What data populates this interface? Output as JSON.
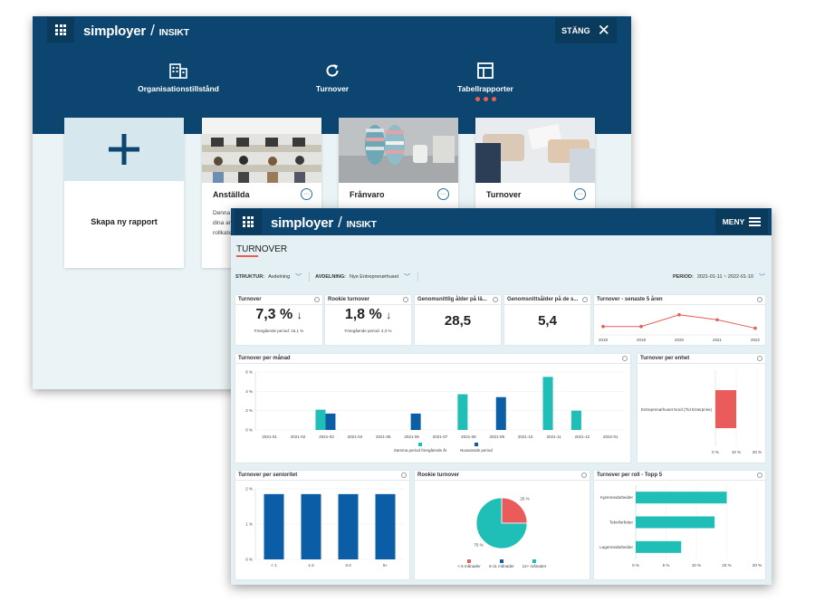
{
  "back": {
    "logo": {
      "brand": "simployer",
      "sub": "INSIKT"
    },
    "close_label": "STÄNG",
    "nav": [
      {
        "label": "Organisationstillstånd",
        "icon": "building-icon"
      },
      {
        "label": "Turnover",
        "icon": "refresh-icon"
      },
      {
        "label": "Tabellrapporter",
        "icon": "table-icon"
      }
    ],
    "create_label": "Skapa ny rapport",
    "cards": [
      {
        "title": "Anställda",
        "desc_line1": "Denna",
        "desc_line2": "dina an",
        "desc_line3": "rollkate"
      },
      {
        "title": "Frånvaro"
      },
      {
        "title": "Turnover"
      }
    ],
    "colors": {
      "header": "#0c4670",
      "accent": "#e8604a"
    }
  },
  "front": {
    "logo": {
      "brand": "simployer",
      "sub": "INSIKT"
    },
    "menu_label": "MENY",
    "page_title": "TURNOVER",
    "filters": {
      "struktur_label": "STRUKTUR:",
      "struktur_value": "Avdelning",
      "avdelning_label": "AVDELNING:",
      "avdelning_value": "Nye Entreprenørhuset",
      "period_label": "PERIOD:",
      "period_value": "2021-01-11 ~ 2022-01-10"
    },
    "kpis": [
      {
        "title": "Turnover",
        "value": "7,3 %",
        "arrow": "↓",
        "sub": "Föregående period: 15,1 %"
      },
      {
        "title": "Rookie turnover",
        "value": "1,8 %",
        "arrow": "↓",
        "sub": "Föregående period: 4,3 %"
      },
      {
        "title": "Genomsnittlig ålder på lä...",
        "value": "28,5"
      },
      {
        "title": "Genomsnittsålder på de s...",
        "value": "5,4"
      }
    ],
    "panels": {
      "five_years": "Turnover - senaste 5 åren",
      "per_month": "Turnover per månad",
      "per_unit": "Turnover per enhet",
      "seniority": "Turnover per senioritet",
      "rookie": "Rookie turnover",
      "per_role": "Turnover per roll - Topp 5"
    },
    "colors": {
      "teal": "#1fbfb8",
      "blue": "#0b5ea6",
      "red": "#ea5b5b"
    }
  },
  "chart_data": [
    {
      "type": "line",
      "title": "Turnover - senaste 5 åren",
      "x": [
        "2018",
        "2019",
        "2020",
        "2021",
        "2022"
      ],
      "series": [
        {
          "values": [
            5,
            5,
            12,
            9,
            4
          ]
        }
      ]
    },
    {
      "type": "bar",
      "title": "Turnover per månad",
      "categories": [
        "2021-01",
        "2021-02",
        "2021-03",
        "2021-04",
        "2021-05",
        "2021-06",
        "2021-07",
        "2021-08",
        "2021-09",
        "2021-10",
        "2021-11",
        "2021-12",
        "2022-01"
      ],
      "ylim": [
        0,
        6
      ],
      "yticks": [
        "0 %",
        "2 %",
        "4 %",
        "6 %"
      ],
      "series": [
        {
          "name": "Samma period föregående år",
          "color": "#1fbfb8",
          "values": [
            0,
            0,
            2.1,
            0,
            0,
            0,
            0,
            3.7,
            0,
            0,
            5.5,
            2.0,
            0
          ]
        },
        {
          "name": "Nuvarande period",
          "color": "#0b5ea6",
          "values": [
            0,
            0,
            1.7,
            0,
            0,
            1.7,
            0,
            0,
            3.4,
            0,
            0,
            0,
            0
          ]
        }
      ]
    },
    {
      "type": "bar",
      "title": "Turnover per enhet",
      "orientation": "horizontal",
      "categories": [
        "Entreprenørhuset Nord (Tid Enterprise)"
      ],
      "values": [
        10
      ],
      "xlim": [
        0,
        20
      ],
      "xticks": [
        "0 %",
        "10 %",
        "20 %"
      ]
    },
    {
      "type": "bar",
      "title": "Turnover per senioritet",
      "categories": [
        "< 1",
        "1-2",
        "3-4",
        "5+"
      ],
      "values": [
        1.85,
        1.85,
        1.85,
        1.85
      ],
      "ylim": [
        0,
        2
      ],
      "yticks": [
        "0 %",
        "1 %",
        "2 %"
      ]
    },
    {
      "type": "pie",
      "title": "Rookie turnover",
      "slices": [
        {
          "label": "< 6 månader",
          "value": 25,
          "display": "25 %",
          "color": "#ea5b5b"
        },
        {
          "label": "6-11 månader",
          "value": 0,
          "display": "",
          "color": "#0b5ea6"
        },
        {
          "label": "12+ månader",
          "value": 75,
          "display": "75 %",
          "color": "#1fbfb8"
        }
      ]
    },
    {
      "type": "bar",
      "title": "Turnover per roll - Topp 5",
      "orientation": "horizontal",
      "categories": [
        "Kjøremedarbeider",
        "Tekniforfetter",
        "Lagermedarbeider"
      ],
      "values": [
        15,
        13,
        7.5
      ],
      "xlim": [
        0,
        20
      ],
      "xticks": [
        "0 %",
        "5 %",
        "10 %",
        "15 %",
        "20 %"
      ]
    }
  ]
}
